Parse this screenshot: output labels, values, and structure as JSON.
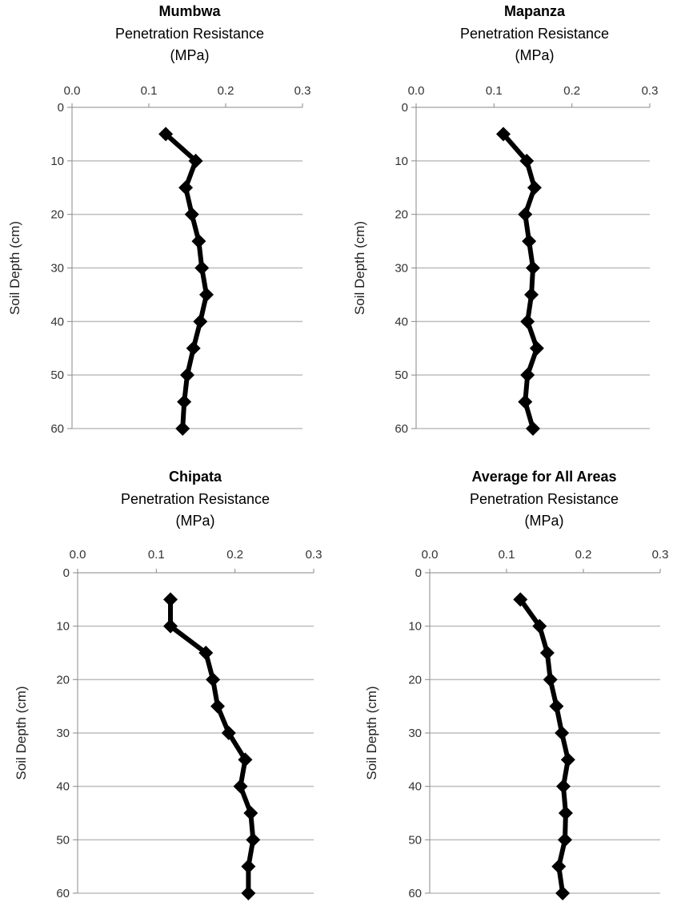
{
  "chart_data": [
    {
      "type": "line",
      "title": "Mumbwa",
      "subtitle": "Penetration Resistance",
      "subtitle2": "(MPa)",
      "ylabel": "Soil Depth (cm)",
      "xlim": [
        0,
        0.3
      ],
      "ylim": [
        0,
        60
      ],
      "y_inverted": true,
      "x_axis_position": "top",
      "x_ticks": [
        "0.0",
        "0.1",
        "0.2",
        "0.3"
      ],
      "y_ticks": [
        "0",
        "10",
        "20",
        "30",
        "40",
        "50",
        "60"
      ],
      "grid": "horizontal",
      "marker": "diamond",
      "line_color": "#000000",
      "series": [
        {
          "x": [
            0.122,
            0.161,
            0.148,
            0.156,
            0.165,
            0.169,
            0.175,
            0.167,
            0.158,
            0.15,
            0.146,
            0.144
          ],
          "y": [
            5,
            10,
            15,
            20,
            25,
            30,
            35,
            40,
            45,
            50,
            55,
            60
          ]
        }
      ]
    },
    {
      "type": "line",
      "title": "Mapanza",
      "subtitle": "Penetration Resistance",
      "subtitle2": "(MPa)",
      "ylabel": "Soil Depth (cm)",
      "xlim": [
        0,
        0.3
      ],
      "ylim": [
        0,
        60
      ],
      "y_inverted": true,
      "x_axis_position": "top",
      "x_ticks": [
        "0.0",
        "0.1",
        "0.2",
        "0.3"
      ],
      "y_ticks": [
        "0",
        "10",
        "20",
        "30",
        "40",
        "50",
        "60"
      ],
      "grid": "horizontal",
      "marker": "diamond",
      "line_color": "#000000",
      "series": [
        {
          "x": [
            0.112,
            0.142,
            0.152,
            0.14,
            0.145,
            0.15,
            0.148,
            0.143,
            0.155,
            0.143,
            0.14,
            0.15
          ],
          "y": [
            5,
            10,
            15,
            20,
            25,
            30,
            35,
            40,
            45,
            50,
            55,
            60
          ]
        }
      ]
    },
    {
      "type": "line",
      "title": "Chipata",
      "subtitle": "Penetration Resistance",
      "subtitle2": "(MPa)",
      "ylabel": "Soil Depth (cm)",
      "xlim": [
        0,
        0.3
      ],
      "ylim": [
        0,
        60
      ],
      "y_inverted": true,
      "x_axis_position": "top",
      "x_ticks": [
        "0.0",
        "0.1",
        "0.2",
        "0.3"
      ],
      "y_ticks": [
        "0",
        "10",
        "20",
        "30",
        "40",
        "50",
        "60"
      ],
      "grid": "horizontal",
      "marker": "diamond",
      "line_color": "#000000",
      "series": [
        {
          "x": [
            0.118,
            0.118,
            0.163,
            0.172,
            0.178,
            0.192,
            0.213,
            0.207,
            0.22,
            0.223,
            0.217,
            0.217
          ],
          "y": [
            5,
            10,
            15,
            20,
            25,
            30,
            35,
            40,
            45,
            50,
            55,
            60
          ]
        }
      ]
    },
    {
      "type": "line",
      "title": "Average for All Areas",
      "subtitle": "Penetration Resistance",
      "subtitle2": "(MPa)",
      "ylabel": "Soil Depth (cm)",
      "xlim": [
        0,
        0.3
      ],
      "ylim": [
        0,
        60
      ],
      "y_inverted": true,
      "x_axis_position": "top",
      "x_ticks": [
        "0.0",
        "0.1",
        "0.2",
        "0.3"
      ],
      "y_ticks": [
        "0",
        "10",
        "20",
        "30",
        "40",
        "50",
        "60"
      ],
      "grid": "horizontal",
      "marker": "diamond",
      "line_color": "#000000",
      "series": [
        {
          "x": [
            0.118,
            0.143,
            0.153,
            0.157,
            0.165,
            0.172,
            0.18,
            0.174,
            0.177,
            0.176,
            0.168,
            0.173
          ],
          "y": [
            5,
            10,
            15,
            20,
            25,
            30,
            35,
            40,
            45,
            50,
            55,
            60
          ]
        }
      ]
    }
  ]
}
